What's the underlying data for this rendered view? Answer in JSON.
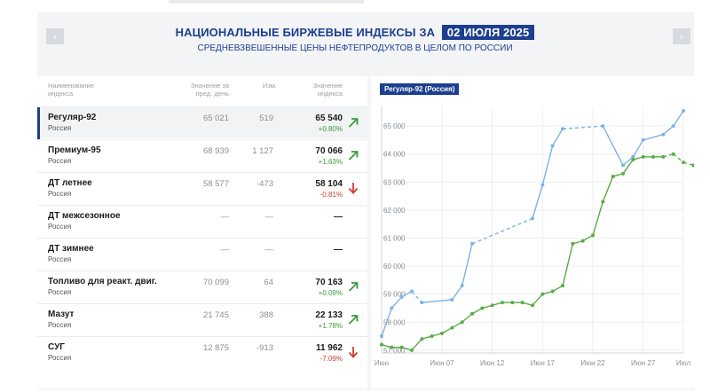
{
  "header": {
    "title": "НАЦИОНАЛЬНЫЕ БИРЖЕВЫЕ ИНДЕКСЫ ЗА",
    "date": "02 ИЮЛЯ 2025",
    "subtitle": "СРЕДНЕВЗВЕШЕННЫЕ ЦЕНЫ НЕФТЕПРОДУКТОВ В ЦЕЛОМ ПО РОССИИ",
    "prev_icon": "‹",
    "next_icon": "›"
  },
  "table": {
    "columns": {
      "name": [
        "Наименование",
        "индекса"
      ],
      "prev": [
        "Значение за",
        "пред. день"
      ],
      "change": [
        "Изм."
      ],
      "value": [
        "Значение",
        "индекса"
      ]
    },
    "rows": [
      {
        "name": "Регуляр-92",
        "region": "Россия",
        "prev": "65 021",
        "change": "519",
        "value": "65 540",
        "pct": "+0.80%",
        "trend": "up",
        "active": true
      },
      {
        "name": "Премиум-95",
        "region": "Россия",
        "prev": "68 939",
        "change": "1 127",
        "value": "70 066",
        "pct": "+1.63%",
        "trend": "up",
        "active": false
      },
      {
        "name": "ДТ летнее",
        "region": "Россия",
        "prev": "58 577",
        "change": "-473",
        "value": "58 104",
        "pct": "-0.81%",
        "trend": "down",
        "active": false
      },
      {
        "name": "ДТ межсезонное",
        "region": "Россия",
        "prev": "—",
        "change": "—",
        "value": "—",
        "pct": "",
        "trend": "none",
        "active": false
      },
      {
        "name": "ДТ зимнее",
        "region": "Россия",
        "prev": "—",
        "change": "—",
        "value": "—",
        "pct": "",
        "trend": "none",
        "active": false
      },
      {
        "name": "Топливо для реакт. двиг.",
        "region": "Россия",
        "prev": "70 099",
        "change": "64",
        "value": "70 163",
        "pct": "+0.09%",
        "trend": "up",
        "active": false
      },
      {
        "name": "Мазут",
        "region": "Россия",
        "prev": "21 745",
        "change": "388",
        "value": "22 133",
        "pct": "+1.78%",
        "trend": "up",
        "active": false
      },
      {
        "name": "СУГ",
        "region": "Россия",
        "prev": "12 875",
        "change": "-913",
        "value": "11 962",
        "pct": "-7.09%",
        "trend": "down",
        "active": false
      }
    ]
  },
  "colors": {
    "brand": "#1d3f8f",
    "up": "#3a9a3a",
    "down": "#d33b2f",
    "series_blue": "#7fb2e5",
    "series_green": "#5cab46"
  },
  "chart_data": {
    "type": "line",
    "title": "Регуляр-92 (Россия)",
    "x_ticks": [
      "Июн",
      "Июн 07",
      "Июн 12",
      "Июн 17",
      "Июн 22",
      "Июн 27",
      "Июл"
    ],
    "x_tick_days": [
      1,
      7,
      12,
      17,
      22,
      27,
      31
    ],
    "y_ticks": [
      "57 000",
      "58 000",
      "59 000",
      "60 000",
      "61 000",
      "62 000",
      "63 000",
      "64 000",
      "65 000"
    ],
    "ylim": [
      56900,
      65700
    ],
    "xlim": [
      1,
      31
    ],
    "grid": true,
    "series": [
      {
        "color": "#7fb2e5",
        "points": [
          [
            1,
            57500
          ],
          [
            2,
            58500
          ],
          [
            3,
            58900
          ],
          [
            4,
            59100
          ],
          [
            5,
            58700
          ],
          [
            8,
            58800
          ],
          [
            9,
            59300
          ],
          [
            10,
            60800
          ],
          [
            16,
            61700
          ],
          [
            17,
            62900
          ],
          [
            18,
            64300
          ],
          [
            19,
            64900
          ],
          [
            23,
            65000
          ],
          [
            25,
            63600
          ],
          [
            26,
            63900
          ],
          [
            27,
            64500
          ],
          [
            29,
            64700
          ],
          [
            30,
            65000
          ],
          [
            31,
            65540
          ]
        ],
        "dashed_segments": [
          [
            4,
            5
          ],
          [
            10,
            16
          ],
          [
            19,
            23
          ]
        ]
      },
      {
        "color": "#5cab46",
        "points": [
          [
            1,
            57200
          ],
          [
            2,
            57100
          ],
          [
            3,
            57100
          ],
          [
            4,
            57000
          ],
          [
            5,
            57400
          ],
          [
            6,
            57500
          ],
          [
            7,
            57600
          ],
          [
            8,
            57800
          ],
          [
            9,
            58000
          ],
          [
            10,
            58300
          ],
          [
            11,
            58500
          ],
          [
            12,
            58600
          ],
          [
            13,
            58700
          ],
          [
            14,
            58700
          ],
          [
            15,
            58700
          ],
          [
            16,
            58600
          ],
          [
            17,
            59000
          ],
          [
            18,
            59100
          ],
          [
            19,
            59300
          ],
          [
            20,
            60800
          ],
          [
            21,
            60900
          ],
          [
            22,
            61100
          ],
          [
            23,
            62300
          ],
          [
            24,
            63200
          ],
          [
            25,
            63300
          ],
          [
            26,
            63800
          ],
          [
            27,
            63900
          ],
          [
            28,
            63900
          ],
          [
            29,
            63900
          ],
          [
            30,
            64000
          ],
          [
            31,
            63700
          ],
          [
            32,
            63600
          ]
        ],
        "dashed_segments": [
          [
            29,
            30
          ],
          [
            30,
            31
          ],
          [
            31,
            32
          ]
        ]
      }
    ]
  }
}
